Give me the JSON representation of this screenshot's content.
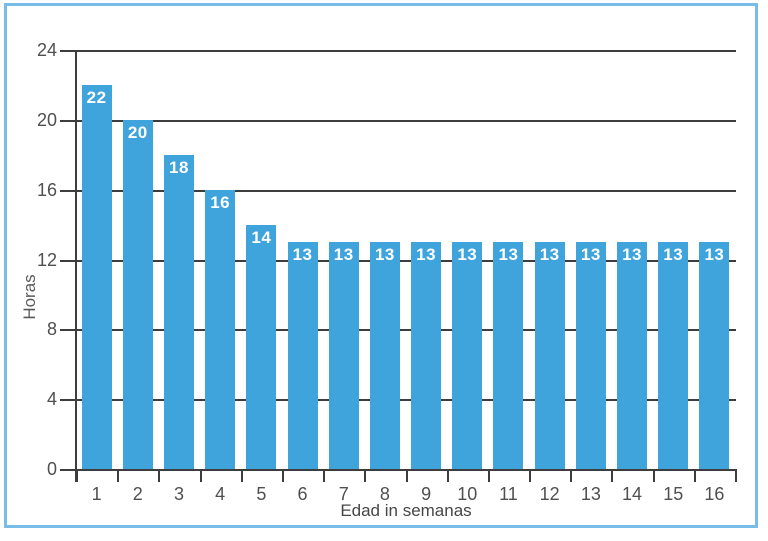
{
  "chart_data": {
    "type": "bar",
    "title": "",
    "xlabel": "Edad in semanas",
    "ylabel": "Horas",
    "categories": [
      "1",
      "2",
      "3",
      "4",
      "5",
      "6",
      "7",
      "8",
      "9",
      "10",
      "11",
      "12",
      "13",
      "14",
      "15",
      "16"
    ],
    "values": [
      22,
      20,
      18,
      16,
      14,
      13,
      13,
      13,
      13,
      13,
      13,
      13,
      13,
      13,
      13,
      13
    ],
    "ylim": [
      0,
      24
    ],
    "yticks": [
      0,
      4,
      8,
      12,
      16,
      20,
      24
    ],
    "grid": true,
    "bar_labels_shown": true,
    "legend": "none"
  },
  "colors": {
    "bar_fill": "#3fa3dc",
    "bar_value_text": "#ffffff",
    "axis_and_grid": "#3d3d3d",
    "tick_text": "#4f4f4f",
    "frame_border": "#79bce7",
    "background": "#ffffff"
  }
}
